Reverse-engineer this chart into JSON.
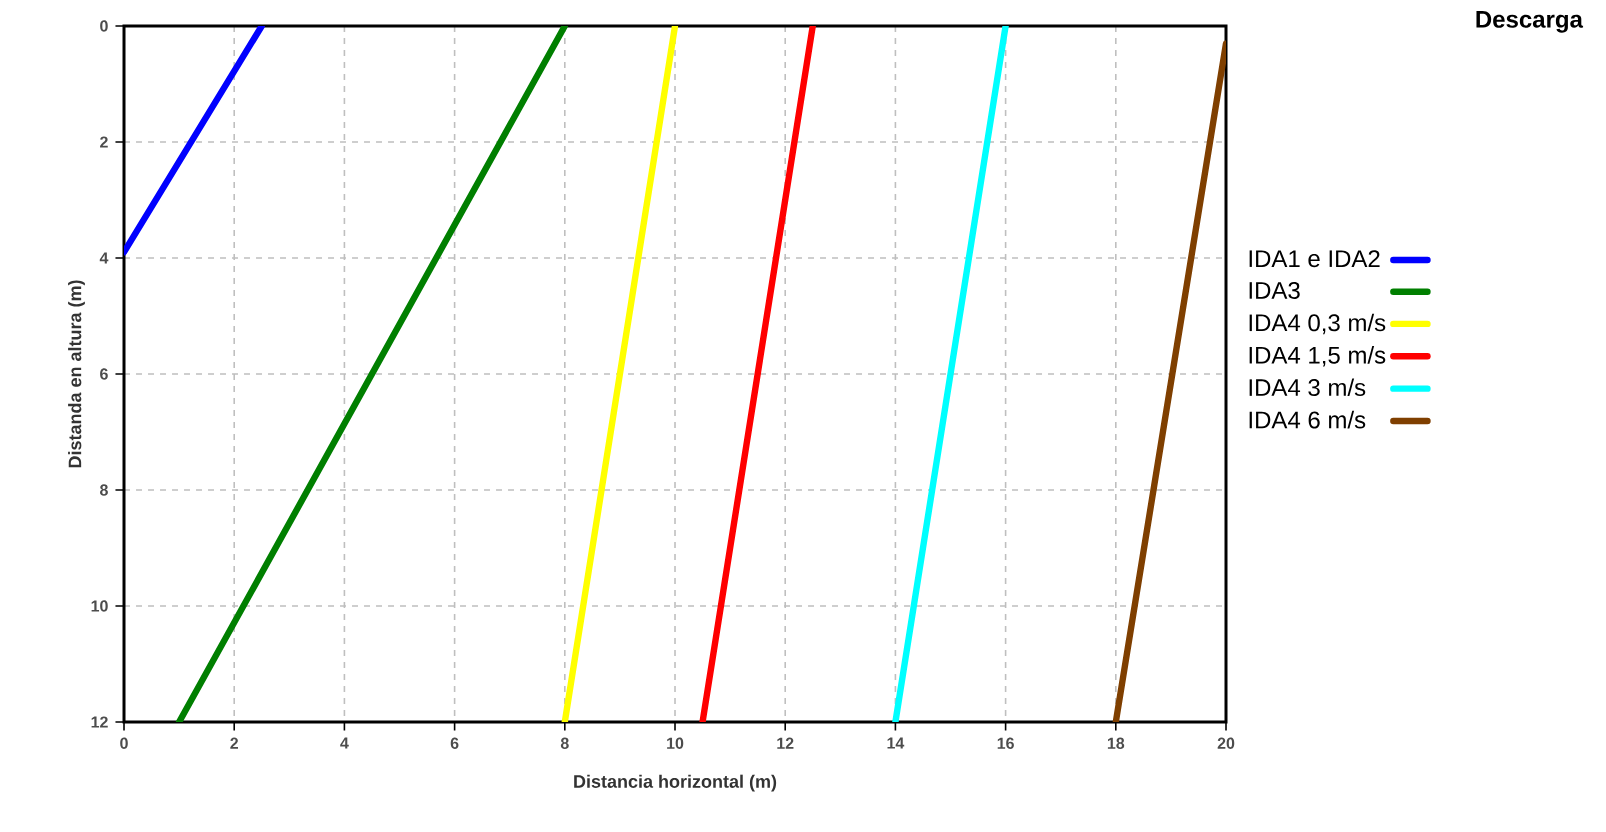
{
  "chart_data": {
    "type": "line",
    "title": "Descarga",
    "xlabel": "Distancia horizontal (m)",
    "ylabel": "Distanda en altura (m)",
    "xlim": [
      0,
      20
    ],
    "ylim": [
      12,
      0
    ],
    "xticks": [
      0,
      2,
      4,
      6,
      8,
      10,
      12,
      14,
      16,
      18,
      20
    ],
    "yticks": [
      0,
      2,
      4,
      6,
      8,
      10,
      12
    ],
    "grid": true,
    "legend": "right",
    "marker": "none",
    "line_style": "solid",
    "series": [
      {
        "name": "IDA1 e IDA2",
        "color": "#0000ff",
        "x": [
          2.5,
          0
        ],
        "values": [
          0,
          3.9
        ]
      },
      {
        "name": "IDA3",
        "color": "#007f00",
        "x": [
          8,
          1
        ],
        "values": [
          0,
          12
        ]
      },
      {
        "name": "IDA4 0,3 m/s",
        "color": "#ffff00",
        "x": [
          10,
          8
        ],
        "values": [
          0,
          12
        ]
      },
      {
        "name": "IDA4 1,5 m/s",
        "color": "#ff0000",
        "x": [
          12.5,
          10.5
        ],
        "values": [
          0,
          12
        ]
      },
      {
        "name": "IDA4    3 m/s",
        "color": "#00ffff",
        "x": [
          16,
          14
        ],
        "values": [
          0,
          12
        ]
      },
      {
        "name": "IDA4    6 m/s",
        "color": "#7f3f00",
        "x": [
          20,
          18
        ],
        "values": [
          0.3,
          12
        ]
      }
    ]
  }
}
